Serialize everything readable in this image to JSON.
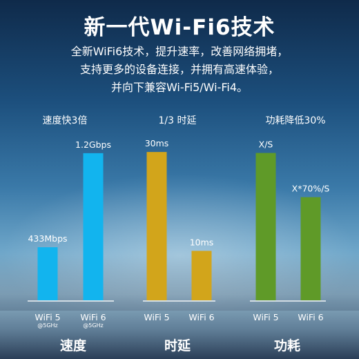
{
  "header": {
    "title": "新一代Wi-Fi6技术",
    "lines": [
      "全新WiFi6技术，提升速率，改善网络拥堵，",
      "支持更多的设备连接，并拥有高速体验，",
      "并向下兼容Wi-Fi5/Wi-Fi4。"
    ]
  },
  "chart_data": [
    {
      "type": "bar",
      "title": "速度快3倍",
      "caption": "速度",
      "categories": [
        "WiFi 5",
        "WiFi 6"
      ],
      "category_notes": [
        "@5GHz",
        "@5GHz"
      ],
      "values": [
        433,
        1200
      ],
      "value_labels": [
        "433Mbps",
        "1.2Gbps"
      ],
      "unit": "Mbps",
      "color": "#12b4ee",
      "ylim": [
        0,
        1250
      ]
    },
    {
      "type": "bar",
      "title": "1/3 时延",
      "caption": "时延",
      "categories": [
        "WiFi 5",
        "WiFi 6"
      ],
      "values": [
        30,
        10
      ],
      "value_labels": [
        "30ms",
        "10ms"
      ],
      "unit": "ms",
      "color": "#d2a51b",
      "ylim": [
        0,
        31
      ]
    },
    {
      "type": "bar",
      "title": "功耗降低30%",
      "caption": "功耗",
      "categories": [
        "WiFi 5",
        "WiFi 6"
      ],
      "values": [
        1,
        0.7
      ],
      "value_labels": [
        "X/S",
        "X*70%/S"
      ],
      "color": "#5f9a28",
      "ylim": [
        0,
        1.04
      ]
    }
  ]
}
